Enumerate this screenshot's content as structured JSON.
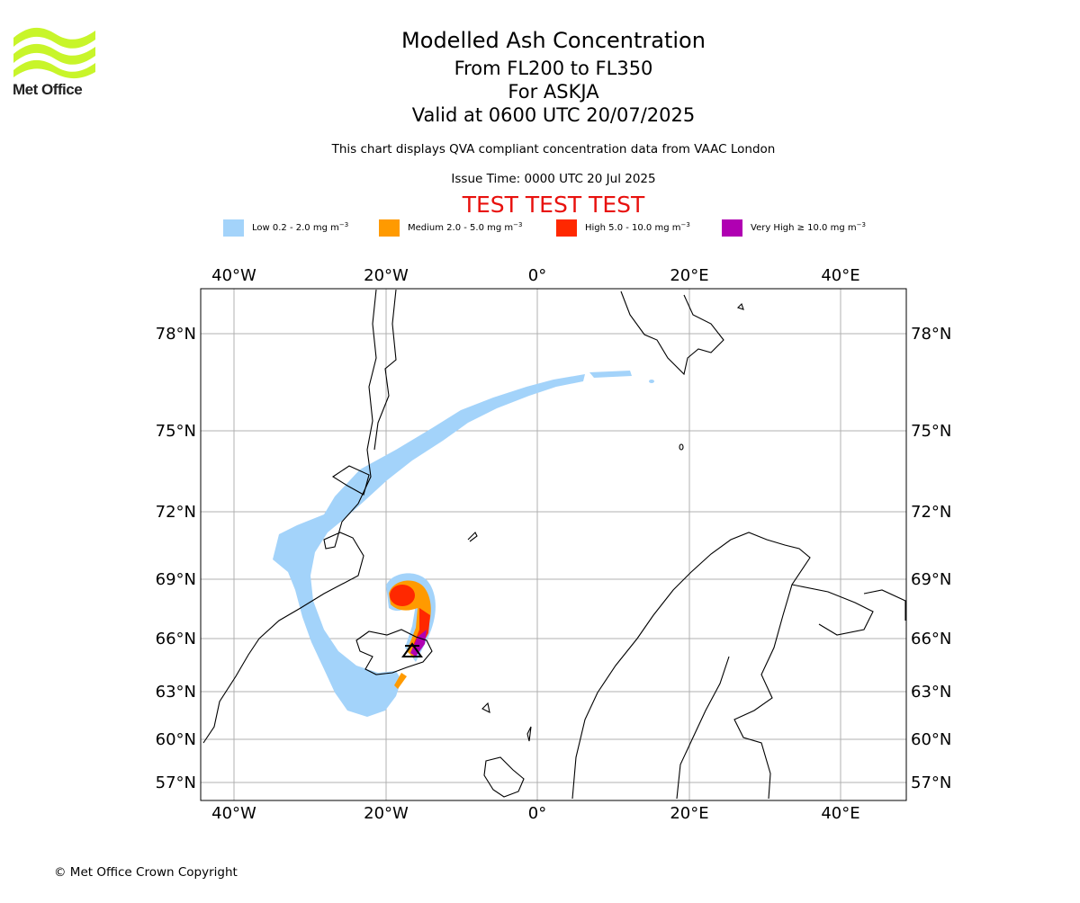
{
  "header": {
    "logo_text": "Met Office",
    "title": "Modelled Ash Concentration",
    "level_range": "From FL200 to FL350",
    "volcano": "For ASKJA",
    "valid_time": "Valid at 0600 UTC 20/07/2025",
    "compliance_note": "This chart displays QVA compliant concentration data from VAAC London",
    "issue_time": "Issue Time: 0000 UTC 20 Jul 2025",
    "test_banner": "TEST TEST TEST"
  },
  "legend": [
    {
      "label": "Low 0.2 - 2.0 mg m",
      "unit_exp": "−3",
      "color": "#a3d3fa"
    },
    {
      "label": "Medium 2.0 - 5.0 mg m",
      "unit_exp": "−3",
      "color": "#ff9a00"
    },
    {
      "label": "High 5.0 - 10.0 mg m",
      "unit_exp": "−3",
      "color": "#ff2800"
    },
    {
      "label": "Very High  ≥  10.0 mg m",
      "unit_exp": "−3",
      "color": "#b000b2"
    }
  ],
  "map": {
    "lon_ticks": [
      "40°W",
      "20°W",
      "0°",
      "20°E",
      "40°E"
    ],
    "lat_ticks": [
      "78°N",
      "75°N",
      "72°N",
      "69°N",
      "66°N",
      "63°N",
      "60°N",
      "57°N"
    ],
    "brand_color": "#c8f52a",
    "volcano_marker": "volcano-symbol"
  },
  "footer": {
    "copyright": "© Met Office Crown Copyright"
  }
}
